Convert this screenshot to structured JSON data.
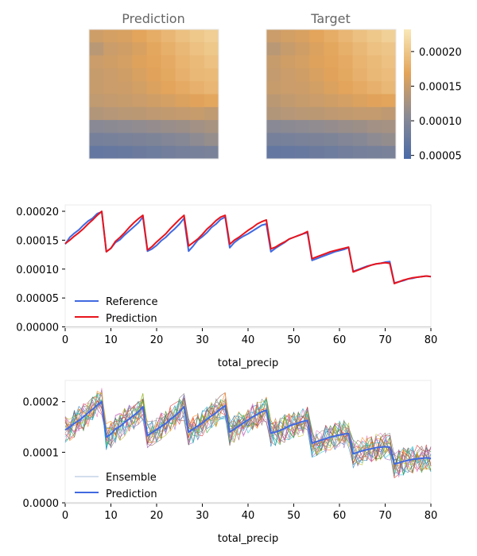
{
  "chart_data": [
    {
      "type": "heatmap",
      "title": "Prediction",
      "grid": [
        [
          0.000155,
          0.00016,
          0.000162,
          0.00017,
          0.000178,
          0.000186,
          0.000195,
          0.000202,
          0.000208
        ],
        [
          0.00014,
          0.000152,
          0.000156,
          0.000162,
          0.000172,
          0.00018,
          0.000188,
          0.000196,
          0.000202
        ],
        [
          0.000152,
          0.000156,
          0.00016,
          0.000166,
          0.00017,
          0.000176,
          0.000184,
          0.00019,
          0.000196
        ],
        [
          0.00015,
          0.000152,
          0.000156,
          0.000162,
          0.000168,
          0.000174,
          0.000182,
          0.000188,
          0.00019
        ],
        [
          0.00015,
          0.000152,
          0.000154,
          0.000158,
          0.000164,
          0.00017,
          0.000176,
          0.000182,
          0.000186
        ],
        [
          0.000145,
          0.000148,
          0.00015,
          0.000152,
          0.000156,
          0.00016,
          0.000164,
          0.000168,
          0.000172
        ],
        [
          0.000135,
          0.000138,
          0.00014,
          0.000142,
          0.000144,
          0.000146,
          0.000148,
          0.00015,
          0.000145
        ],
        [
          0.000105,
          0.000108,
          0.00011,
          0.000112,
          0.000115,
          0.000118,
          0.00012,
          0.000124,
          0.000128
        ],
        [
          8.8e-05,
          9e-05,
          9.2e-05,
          9.4e-05,
          9.6e-05,
          0.0001,
          0.000104,
          0.00011,
          0.000116
        ],
        [
          7e-05,
          7.2e-05,
          7.4e-05,
          7.8e-05,
          8e-05,
          8.4e-05,
          8.8e-05,
          9e-05,
          9.2e-05
        ]
      ]
    },
    {
      "type": "heatmap",
      "title": "Target",
      "grid": [
        [
          0.000152,
          0.000158,
          0.000162,
          0.00017,
          0.000178,
          0.000186,
          0.000195,
          0.000202,
          0.00021
        ],
        [
          0.00014,
          0.00015,
          0.000156,
          0.000164,
          0.000172,
          0.00018,
          0.000188,
          0.000196,
          0.0002
        ],
        [
          0.00015,
          0.000156,
          0.00016,
          0.000166,
          0.00017,
          0.000176,
          0.000184,
          0.00019,
          0.000196
        ],
        [
          0.000148,
          0.000152,
          0.000156,
          0.000162,
          0.000168,
          0.000174,
          0.000182,
          0.000188,
          0.000192
        ],
        [
          0.00015,
          0.000152,
          0.000154,
          0.000158,
          0.000164,
          0.00017,
          0.000176,
          0.000182,
          0.000188
        ],
        [
          0.000142,
          0.000146,
          0.00015,
          0.000152,
          0.000156,
          0.00016,
          0.000164,
          0.000168,
          0.00017
        ],
        [
          0.000135,
          0.000138,
          0.00014,
          0.000142,
          0.000144,
          0.000146,
          0.000148,
          0.000148,
          0.000144
        ],
        [
          0.000105,
          0.000108,
          0.00011,
          0.000112,
          0.000115,
          0.000118,
          0.00012,
          0.000124,
          0.000126
        ],
        [
          8.8e-05,
          9e-05,
          9.2e-05,
          9.4e-05,
          9.6e-05,
          0.0001,
          0.000104,
          0.00011,
          0.000114
        ],
        [
          7e-05,
          7.2e-05,
          7.4e-05,
          7.8e-05,
          8e-05,
          8.4e-05,
          8.8e-05,
          9e-05,
          9.2e-05
        ]
      ],
      "colorbar": {
        "ticks": [
          "0.00005",
          "0.00010",
          "0.00015",
          "0.00020"
        ],
        "tick_values": [
          5e-05,
          0.0001,
          0.00015,
          0.0002
        ],
        "range": [
          4.5e-05,
          0.000232
        ],
        "colors": [
          "#4a6aa8",
          "#8a8a94",
          "#e3a45a",
          "#f8e8b8"
        ]
      }
    },
    {
      "type": "line",
      "xlabel": "total_precip",
      "ylabel": "",
      "xlim": [
        0,
        80
      ],
      "ylim": [
        -2e-06,
        0.000211
      ],
      "xticks": [
        "0",
        "10",
        "20",
        "30",
        "40",
        "50",
        "60",
        "70",
        "80"
      ],
      "yticks": [
        "0.00000",
        "0.00005",
        "0.00010",
        "0.00015",
        "0.00020"
      ],
      "ytick_values": [
        0,
        5e-05,
        0.0001,
        0.00015,
        0.0002
      ],
      "legend": "lower-left",
      "series": [
        {
          "name": "Reference",
          "color": "#4169e1",
          "values": [
            0.000143,
            0.000155,
            0.000162,
            0.000168,
            0.000176,
            0.000183,
            0.000188,
            0.000196,
            0.000199,
            0.00013,
            0.000136,
            0.000146,
            0.000151,
            0.000159,
            0.000166,
            0.000173,
            0.00018,
            0.00019,
            0.000131,
            0.000135,
            0.000141,
            0.000149,
            0.000155,
            0.000163,
            0.00017,
            0.000178,
            0.000188,
            0.000131,
            0.00014,
            0.00015,
            0.000156,
            0.000163,
            0.000172,
            0.000178,
            0.000186,
            0.00019,
            0.000137,
            0.000146,
            0.000152,
            0.000157,
            0.000161,
            0.000166,
            0.000171,
            0.000176,
            0.000178,
            0.00013,
            0.000136,
            0.000141,
            0.000146,
            0.000152,
            0.000155,
            0.000158,
            0.000161,
            0.000163,
            0.000115,
            0.000118,
            0.000121,
            0.000124,
            0.000127,
            0.00013,
            0.000132,
            0.000134,
            0.000137,
            9.6e-05,
            9.9e-05,
            0.000102,
            0.000105,
            0.000107,
            0.000109,
            0.00011,
            0.000112,
            0.000113,
            7.6e-05,
            7.8e-05,
            8e-05,
            8.3e-05,
            8.4e-05,
            8.6e-05,
            8.7e-05,
            8.8e-05,
            8.7e-05
          ]
        },
        {
          "name": "Prediction",
          "color": "#e8141c",
          "values": [
            0.000144,
            0.00015,
            0.000157,
            0.000163,
            0.00017,
            0.000178,
            0.000185,
            0.000193,
            0.0002,
            0.00013,
            0.000136,
            0.000148,
            0.000155,
            0.000163,
            0.000172,
            0.00018,
            0.000187,
            0.000193,
            0.000133,
            0.000139,
            0.000147,
            0.000154,
            0.000161,
            0.00017,
            0.000178,
            0.000186,
            0.000193,
            0.00014,
            0.000146,
            0.000152,
            0.00016,
            0.000169,
            0.000176,
            0.000184,
            0.00019,
            0.000193,
            0.000143,
            0.00015,
            0.000155,
            0.000161,
            0.000167,
            0.000172,
            0.000178,
            0.000182,
            0.000185,
            0.000135,
            0.000138,
            0.000143,
            0.000147,
            0.000152,
            0.000155,
            0.000158,
            0.000161,
            0.000165,
            0.000118,
            0.000121,
            0.000124,
            0.000127,
            0.00013,
            0.000132,
            0.000134,
            0.000136,
            0.000138,
            9.5e-05,
            9.8e-05,
            0.000101,
            0.000104,
            0.000107,
            0.000109,
            0.00011,
            0.000111,
            0.00011,
            7.5e-05,
            7.8e-05,
            8.1e-05,
            8.3e-05,
            8.5e-05,
            8.6e-05,
            8.7e-05,
            8.8e-05,
            8.7e-05
          ]
        }
      ]
    },
    {
      "type": "line",
      "xlabel": "total_precip",
      "ylabel": "",
      "xlim": [
        0,
        80
      ],
      "ylim": [
        -1.5e-06,
        0.000242
      ],
      "xticks": [
        "0",
        "10",
        "20",
        "30",
        "40",
        "50",
        "60",
        "70",
        "80"
      ],
      "yticks": [
        "0.0000",
        "0.0001",
        "0.0002"
      ],
      "ytick_values": [
        0,
        0.0001,
        0.0002
      ],
      "legend": "lower-left",
      "ensemble": {
        "name": "Ensemble",
        "members": 20,
        "spread": 2.8e-05,
        "colors": [
          "#1f77b4",
          "#ff7f0e",
          "#2ca02c",
          "#d62728",
          "#9467bd",
          "#8c564b",
          "#e377c2",
          "#7f7f7f",
          "#bcbd22",
          "#17becf"
        ]
      },
      "series": [
        {
          "name": "Prediction",
          "color": "#4169e1",
          "values": [
            0.000144,
            0.00015,
            0.000157,
            0.000163,
            0.00017,
            0.000178,
            0.000185,
            0.000193,
            0.0002,
            0.00013,
            0.000136,
            0.000146,
            0.000151,
            0.000159,
            0.000166,
            0.000173,
            0.00018,
            0.00019,
            0.000133,
            0.000139,
            0.000145,
            0.000151,
            0.000157,
            0.000165,
            0.000172,
            0.00018,
            0.00019,
            0.00014,
            0.000146,
            0.000152,
            0.000158,
            0.000165,
            0.000172,
            0.000178,
            0.000186,
            0.000192,
            0.00014,
            0.000146,
            0.000152,
            0.000158,
            0.000164,
            0.00017,
            0.000175,
            0.00018,
            0.000183,
            0.000138,
            0.00014,
            0.000143,
            0.000147,
            0.000152,
            0.000155,
            0.000158,
            0.000161,
            0.000163,
            0.000118,
            0.000121,
            0.000124,
            0.000127,
            0.00013,
            0.000132,
            0.000134,
            0.000136,
            0.000137,
            9.7e-05,
            0.0001,
            0.000103,
            0.000105,
            0.000107,
            0.000109,
            0.00011,
            0.000111,
            0.00011,
            7.7e-05,
            7.9e-05,
            8.2e-05,
            8.4e-05,
            8.6e-05,
            8.7e-05,
            8.8e-05,
            8.9e-05,
            8.8e-05
          ]
        }
      ]
    }
  ]
}
